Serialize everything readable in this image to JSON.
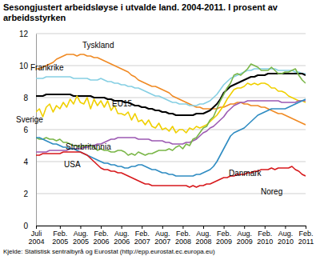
{
  "chart_data": {
    "type": "line",
    "title": "Sesongjustert arbeidsløyse i utvalde land. 2004-2011. I prosent av arbeidsstyrken",
    "source": "Kjelde: Statistisk sentralbyrå og Eurostat (http://epp.eurostat.ec.europa.eu)",
    "categories": [
      "Juli 2004",
      null,
      null,
      null,
      null,
      null,
      null,
      "Feb. 2005",
      null,
      null,
      null,
      null,
      null,
      "Aug. 2005",
      null,
      null,
      null,
      null,
      null,
      "Feb. 2006",
      null,
      null,
      null,
      null,
      null,
      "Aug. 2006",
      null,
      null,
      null,
      null,
      null,
      "Feb. 2007",
      null,
      null,
      null,
      null,
      null,
      "Aug. 2007",
      null,
      null,
      null,
      null,
      null,
      "Feb. 2008",
      null,
      null,
      null,
      null,
      null,
      "Aug. 2008",
      null,
      null,
      null,
      null,
      null,
      "Feb. 2009",
      null,
      null,
      null,
      null,
      null,
      "Aug. 2009",
      null,
      null,
      null,
      null,
      null,
      "Feb. 2010",
      null,
      null,
      null,
      null,
      null,
      "Aug. 2010",
      null,
      null,
      null,
      null,
      null,
      "Feb. 2011"
    ],
    "series": [
      {
        "name": "Tyskland",
        "color": "#f08a24",
        "values": [
          9.8,
          9.8,
          9.9,
          10.0,
          10.1,
          10.2,
          10.4,
          10.5,
          10.6,
          10.7,
          10.7,
          10.7,
          10.6,
          10.7,
          10.7,
          10.6,
          10.6,
          10.5,
          10.5,
          10.4,
          10.3,
          10.2,
          10.1,
          10.0,
          9.9,
          9.8,
          9.7,
          9.6,
          9.4,
          9.3,
          9.1,
          9.0,
          8.9,
          8.8,
          8.7,
          8.7,
          8.6,
          8.5,
          8.4,
          8.3,
          8.1,
          8.0,
          7.9,
          7.8,
          7.7,
          7.6,
          7.5,
          7.4,
          7.4,
          7.3,
          7.3,
          7.3,
          7.3,
          7.3,
          7.4,
          7.4,
          7.5,
          7.6,
          7.6,
          7.7,
          7.7,
          7.6,
          7.6,
          7.5,
          7.5,
          7.5,
          7.4,
          7.4,
          7.3,
          7.2,
          7.1,
          7.0,
          7.0,
          6.9,
          6.8,
          6.7,
          6.6,
          6.5,
          6.4,
          6.3
        ]
      },
      {
        "name": "Frankrike",
        "color": "#86cfe3",
        "values": [
          9.2,
          9.2,
          9.2,
          9.3,
          9.3,
          9.3,
          9.3,
          9.3,
          9.3,
          9.3,
          9.3,
          9.2,
          9.2,
          9.2,
          9.2,
          9.2,
          9.1,
          9.1,
          9.1,
          9.2,
          9.1,
          9.0,
          9.0,
          8.9,
          8.9,
          8.8,
          8.8,
          8.7,
          8.7,
          8.6,
          8.6,
          8.5,
          8.4,
          8.3,
          8.2,
          8.1,
          8.1,
          8.0,
          7.9,
          7.8,
          7.7,
          7.7,
          7.6,
          7.6,
          7.6,
          7.5,
          7.5,
          7.5,
          7.6,
          7.6,
          7.7,
          7.8,
          8.0,
          8.2,
          8.5,
          8.8,
          9.0,
          9.2,
          9.3,
          9.4,
          9.5,
          9.6,
          9.7,
          9.7,
          9.8,
          9.8,
          9.8,
          9.8,
          9.8,
          9.8,
          9.8,
          9.7,
          9.7,
          9.7,
          9.7,
          9.7,
          9.6,
          9.6,
          9.5,
          9.5
        ]
      },
      {
        "name": "EU15",
        "color": "#000000",
        "values": [
          8.1,
          8.1,
          8.1,
          8.2,
          8.2,
          8.2,
          8.2,
          8.2,
          8.2,
          8.2,
          8.2,
          8.1,
          8.1,
          8.1,
          8.1,
          8.1,
          8.1,
          8.0,
          8.0,
          8.0,
          8.0,
          7.9,
          7.9,
          7.8,
          7.8,
          7.8,
          7.7,
          7.7,
          7.6,
          7.5,
          7.5,
          7.4,
          7.4,
          7.3,
          7.3,
          7.2,
          7.2,
          7.1,
          7.1,
          7.0,
          7.0,
          6.9,
          6.9,
          6.9,
          6.9,
          6.9,
          6.9,
          7.0,
          7.0,
          7.0,
          7.1,
          7.2,
          7.4,
          7.6,
          7.9,
          8.3,
          8.5,
          8.7,
          8.8,
          8.9,
          9.0,
          9.1,
          9.2,
          9.3,
          9.3,
          9.4,
          9.4,
          9.4,
          9.5,
          9.5,
          9.5,
          9.5,
          9.5,
          9.5,
          9.5,
          9.5,
          9.5,
          9.5,
          9.5,
          9.4
        ]
      },
      {
        "name": "Sverige",
        "color": "#f0d000",
        "values": [
          7.1,
          7.3,
          6.8,
          7.4,
          7.6,
          7.1,
          7.5,
          7.3,
          7.7,
          7.4,
          7.9,
          7.6,
          8.1,
          7.7,
          7.6,
          8.0,
          7.3,
          7.9,
          7.5,
          7.8,
          7.4,
          7.8,
          7.2,
          7.5,
          7.0,
          7.0,
          6.9,
          7.1,
          6.6,
          7.0,
          6.5,
          6.6,
          6.3,
          6.6,
          6.2,
          6.1,
          6.4,
          6.0,
          6.1,
          5.9,
          6.2,
          5.8,
          6.0,
          6.0,
          5.8,
          6.1,
          6.0,
          6.2,
          6.1,
          6.2,
          6.3,
          6.5,
          6.7,
          6.9,
          7.2,
          7.5,
          7.9,
          8.2,
          8.5,
          8.6,
          8.6,
          8.7,
          8.9,
          8.8,
          8.9,
          8.8,
          8.9,
          8.9,
          8.8,
          8.6,
          8.6,
          8.4,
          8.4,
          8.3,
          8.1,
          8.0,
          7.9,
          7.8,
          7.8,
          7.7
        ]
      },
      {
        "name": "Storbritannia",
        "color": "#9c5ab2",
        "values": [
          4.6,
          4.6,
          4.6,
          4.6,
          4.7,
          4.7,
          4.7,
          4.7,
          4.7,
          4.7,
          4.8,
          4.8,
          4.8,
          4.8,
          4.9,
          4.9,
          5.0,
          5.0,
          5.1,
          5.1,
          5.2,
          5.3,
          5.4,
          5.4,
          5.5,
          5.5,
          5.5,
          5.5,
          5.5,
          5.5,
          5.4,
          5.4,
          5.4,
          5.4,
          5.3,
          5.3,
          5.3,
          5.3,
          5.2,
          5.2,
          5.1,
          5.1,
          5.1,
          5.1,
          5.2,
          5.2,
          5.3,
          5.4,
          5.6,
          5.8,
          5.9,
          6.1,
          6.2,
          6.4,
          6.6,
          6.8,
          7.1,
          7.3,
          7.5,
          7.6,
          7.7,
          7.7,
          7.8,
          7.8,
          7.8,
          7.8,
          7.8,
          7.8,
          7.8,
          7.8,
          7.8,
          7.8,
          7.7,
          7.7,
          7.7,
          7.7,
          7.7,
          7.8,
          7.8,
          7.8
        ]
      },
      {
        "name": "USA",
        "color": "#7ab648",
        "values": [
          5.5,
          5.4,
          5.4,
          5.5,
          5.4,
          5.4,
          5.3,
          5.4,
          5.2,
          5.2,
          5.1,
          5.0,
          5.0,
          4.9,
          5.0,
          5.0,
          5.0,
          4.9,
          4.7,
          4.8,
          4.7,
          4.7,
          4.6,
          4.6,
          4.7,
          4.7,
          4.6,
          4.4,
          4.5,
          4.4,
          4.6,
          4.5,
          4.4,
          4.5,
          4.5,
          4.6,
          4.7,
          4.7,
          4.7,
          4.8,
          4.7,
          4.9,
          5.0,
          4.8,
          5.1,
          5.0,
          5.4,
          5.5,
          5.8,
          6.1,
          6.2,
          6.6,
          6.8,
          7.3,
          7.8,
          8.2,
          8.6,
          8.9,
          9.4,
          9.5,
          9.4,
          9.6,
          9.8,
          10.1,
          10.0,
          9.9,
          9.7,
          9.7,
          9.7,
          9.9,
          9.7,
          9.5,
          9.5,
          9.6,
          9.6,
          9.7,
          9.8,
          9.4,
          9.1,
          8.9
        ]
      },
      {
        "name": "Danmark",
        "color": "#2f8cc2",
        "values": [
          5.5,
          5.5,
          5.4,
          5.3,
          5.2,
          5.1,
          5.1,
          5.0,
          4.9,
          4.9,
          4.8,
          4.8,
          4.7,
          4.6,
          4.5,
          4.4,
          4.3,
          4.2,
          4.1,
          4.0,
          3.9,
          3.9,
          3.8,
          3.8,
          3.7,
          3.7,
          3.6,
          3.6,
          3.7,
          3.7,
          3.8,
          3.8,
          3.7,
          3.6,
          3.5,
          3.5,
          3.4,
          3.3,
          3.3,
          3.2,
          3.2,
          3.1,
          3.1,
          3.1,
          3.1,
          3.1,
          3.1,
          3.2,
          3.2,
          3.3,
          3.4,
          3.5,
          3.7,
          4.0,
          4.4,
          4.8,
          5.2,
          5.6,
          5.8,
          5.9,
          6.0,
          6.1,
          6.3,
          6.5,
          6.7,
          6.9,
          7.0,
          7.1,
          7.2,
          7.3,
          7.3,
          7.3,
          7.3,
          7.3,
          7.4,
          7.5,
          7.6,
          7.7,
          7.8,
          7.9
        ]
      },
      {
        "name": "Noreg",
        "color": "#d7191c",
        "values": [
          4.4,
          4.4,
          4.5,
          4.5,
          4.5,
          4.5,
          4.5,
          4.5,
          4.6,
          4.6,
          4.6,
          4.6,
          4.6,
          4.6,
          4.5,
          4.4,
          4.2,
          4.0,
          3.8,
          3.6,
          3.5,
          3.5,
          3.4,
          3.4,
          3.3,
          3.3,
          3.2,
          3.1,
          3.0,
          2.9,
          2.8,
          2.7,
          2.6,
          2.6,
          2.5,
          2.5,
          2.5,
          2.5,
          2.5,
          2.5,
          2.5,
          2.5,
          2.5,
          2.5,
          2.5,
          2.4,
          2.5,
          2.4,
          2.5,
          2.5,
          2.6,
          2.6,
          2.7,
          2.8,
          2.9,
          3.0,
          3.0,
          3.1,
          3.1,
          3.2,
          3.2,
          3.2,
          3.3,
          3.3,
          3.4,
          3.4,
          3.5,
          3.5,
          3.5,
          3.6,
          3.5,
          3.6,
          3.6,
          3.6,
          3.6,
          3.7,
          3.5,
          3.4,
          3.2,
          3.1
        ]
      }
    ],
    "ylim": [
      0,
      12
    ],
    "yticks": [
      0,
      2,
      4,
      6,
      8,
      10,
      12
    ],
    "grid": true
  }
}
